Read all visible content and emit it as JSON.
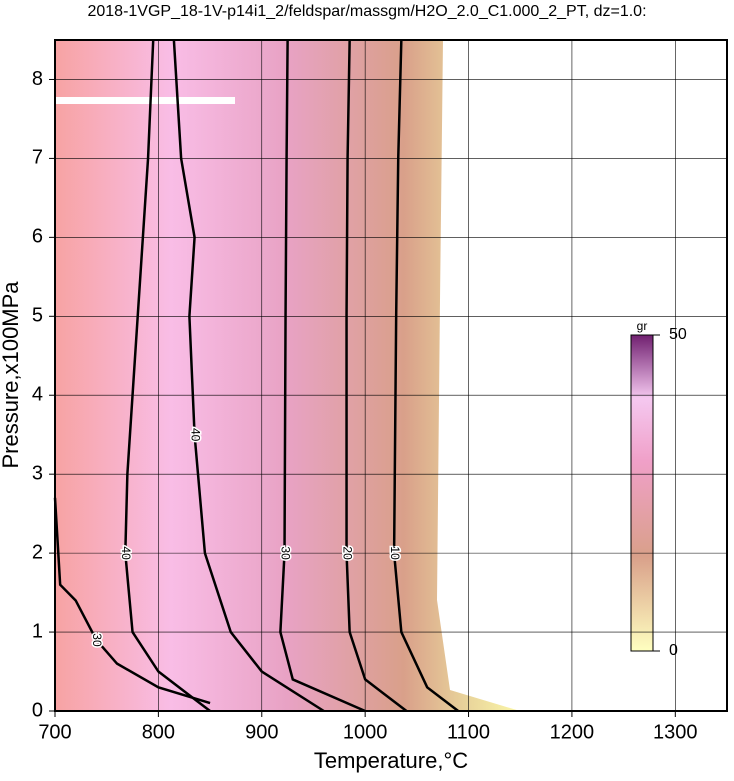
{
  "chart_data": {
    "type": "contour",
    "title": "2018-1VGP_18-1V-p14i1_2/feldspar/massgm/H2O_2.0_C1.000_2_PT, dz=1.0:",
    "xlabel": "Temperature,°C",
    "ylabel": "Pressure,x100MPa",
    "xlim": [
      700,
      1350
    ],
    "ylim": [
      0,
      8.5
    ],
    "xticks": [
      700,
      800,
      900,
      1000,
      1100,
      1200,
      1300
    ],
    "yticks": [
      0,
      1,
      2,
      3,
      4,
      5,
      6,
      7,
      8
    ],
    "grid": true,
    "contours": [
      {
        "level": 10,
        "x": [
          1035,
          1032,
          1030,
          1028,
          1035,
          1060,
          1090
        ],
        "y": [
          8.5,
          7,
          5,
          2,
          1,
          0.3,
          0
        ]
      },
      {
        "level": 20,
        "x": [
          985,
          983,
          982,
          982,
          985,
          1000,
          1040
        ],
        "y": [
          8.5,
          7,
          5,
          2,
          1,
          0.4,
          0
        ]
      },
      {
        "level": 30,
        "x": [
          925,
          924,
          923,
          922,
          918,
          930,
          1000
        ],
        "y": [
          8.5,
          7,
          5,
          2,
          1,
          0.4,
          0
        ]
      },
      {
        "level": 40,
        "x": [
          815,
          822,
          835,
          830,
          835,
          845,
          870,
          900,
          960
        ],
        "y": [
          8.5,
          7,
          6,
          5,
          3.5,
          2,
          1,
          0.5,
          0
        ]
      },
      {
        "level": 40,
        "x": [
          795,
          790,
          780,
          770,
          768,
          775,
          800,
          830,
          850
        ],
        "y": [
          8.5,
          7,
          5,
          3,
          2,
          1,
          0.5,
          0.2,
          0
        ]
      },
      {
        "level": 30,
        "x": [
          700,
          705,
          720,
          740,
          760,
          800,
          850
        ],
        "y": [
          2.7,
          1.6,
          1.4,
          0.9,
          0.6,
          0.3,
          0.1
        ]
      }
    ],
    "colorbar": {
      "label": "gr",
      "lim": [
        0,
        50
      ],
      "ticks": [
        0,
        50
      ]
    }
  }
}
